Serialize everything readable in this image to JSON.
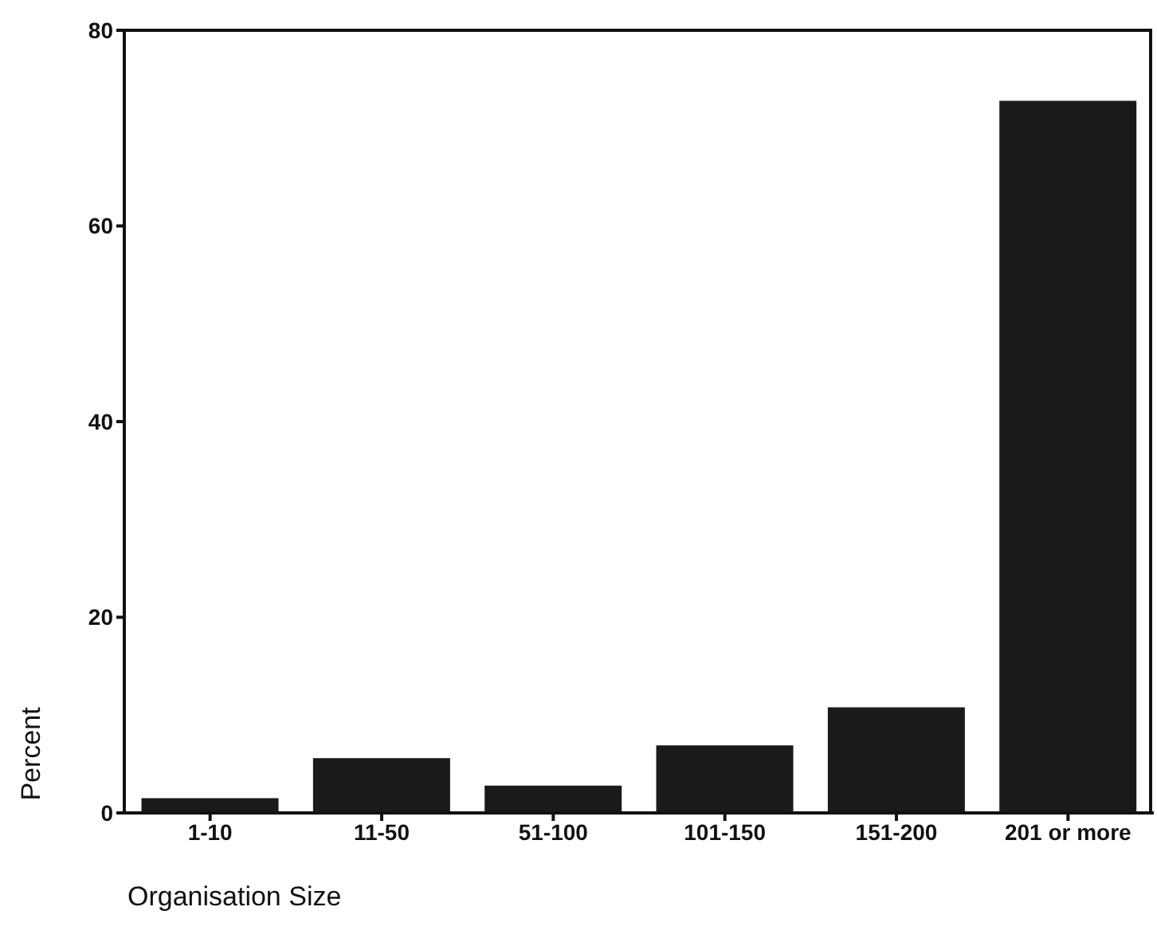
{
  "chart_data": {
    "type": "bar",
    "xlabel": "Organisation Size",
    "ylabel": "Percent",
    "categories": [
      "1-10",
      "11-50",
      "51-100",
      "101-150",
      "151-200",
      "201 or more"
    ],
    "values": [
      1.5,
      5.6,
      2.8,
      6.9,
      10.8,
      72.8
    ],
    "color": "#1a1a1a",
    "ylim": [
      0,
      80
    ],
    "yticks": [
      0,
      20,
      40,
      60,
      80
    ],
    "grid": false
  }
}
